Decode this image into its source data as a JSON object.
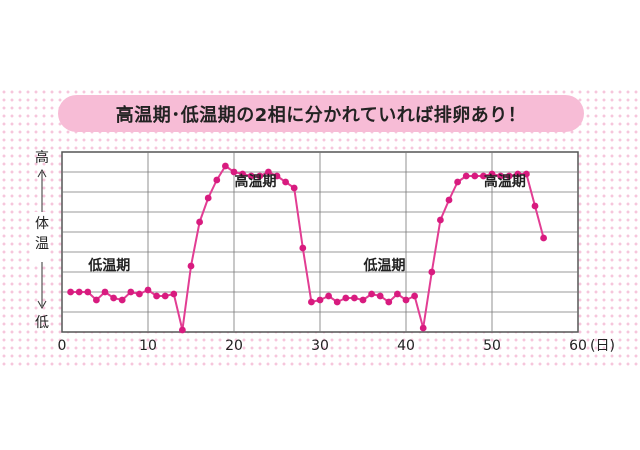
{
  "chart_data": {
    "type": "line",
    "title": "高温期･低温期の2相に分かれていれば排卵あり！",
    "ylabel": "体温",
    "y_high_label": "高",
    "y_low_label": "低",
    "x_unit": "(日)",
    "xlim": [
      0,
      60
    ],
    "ylim": [
      0,
      9
    ],
    "xticks": [
      0,
      10,
      20,
      30,
      40,
      50,
      60
    ],
    "grid": true,
    "line_color": "#e23d93",
    "marker_color": "#d81b7f",
    "annotations": [
      {
        "text": "低温期",
        "x": 5.5,
        "y": 3.1
      },
      {
        "text": "高温期",
        "x": 22.5,
        "y": 7.3
      },
      {
        "text": "低温期",
        "x": 37.5,
        "y": 3.1
      },
      {
        "text": "高温期",
        "x": 51.5,
        "y": 7.3
      }
    ],
    "series": [
      {
        "x": [
          1,
          2,
          3,
          4,
          5,
          6,
          7,
          8,
          9,
          10,
          11,
          12,
          13,
          14,
          15,
          16,
          17,
          18,
          19,
          20,
          21,
          22,
          23,
          24,
          25,
          26,
          27,
          28,
          29,
          30,
          31,
          32,
          33,
          34,
          35,
          36,
          37,
          38,
          39,
          40,
          41,
          42,
          43,
          44,
          45,
          46,
          47,
          48,
          49,
          50,
          51,
          52,
          53,
          54,
          55,
          56
        ],
        "values": [
          2.0,
          2.0,
          2.0,
          1.6,
          2.0,
          1.7,
          1.6,
          2.0,
          1.9,
          2.1,
          1.8,
          1.8,
          1.9,
          0.1,
          3.3,
          5.5,
          6.7,
          7.6,
          8.3,
          8.0,
          7.9,
          7.8,
          7.8,
          8.0,
          7.8,
          7.5,
          7.2,
          4.2,
          1.5,
          1.6,
          1.8,
          1.5,
          1.7,
          1.7,
          1.6,
          1.9,
          1.8,
          1.5,
          1.9,
          1.6,
          1.8,
          0.2,
          3.0,
          5.6,
          6.6,
          7.5,
          7.8,
          7.8,
          7.8,
          7.9,
          7.8,
          7.8,
          7.9,
          7.9,
          6.3,
          4.7
        ]
      }
    ]
  }
}
